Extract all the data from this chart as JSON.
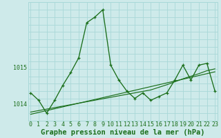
{
  "xlabel": "Graphe pression niveau de la mer (hPa)",
  "hours": [
    0,
    1,
    2,
    3,
    4,
    5,
    6,
    7,
    8,
    9,
    10,
    11,
    12,
    13,
    14,
    15,
    16,
    17,
    18,
    19,
    20,
    21,
    22,
    23
  ],
  "series1": [
    1014.3,
    1014.1,
    1013.75,
    1014.1,
    1014.5,
    1014.85,
    1015.25,
    1016.2,
    1016.35,
    1016.55,
    1015.05,
    1014.65,
    1014.35,
    1014.15,
    1014.3,
    1014.1,
    1014.2,
    1014.3,
    1014.65,
    1015.05,
    1014.65,
    1015.05,
    1015.1,
    1014.35
  ],
  "series2": [
    1013.78,
    1013.82,
    1013.86,
    1013.9,
    1013.94,
    1013.98,
    1014.02,
    1014.06,
    1014.1,
    1014.14,
    1014.18,
    1014.22,
    1014.26,
    1014.3,
    1014.34,
    1014.38,
    1014.45,
    1014.52,
    1014.6,
    1014.68,
    1014.75,
    1014.82,
    1014.9,
    1014.95
  ],
  "series3": [
    1013.72,
    1013.77,
    1013.82,
    1013.87,
    1013.92,
    1013.97,
    1014.02,
    1014.07,
    1014.12,
    1014.17,
    1014.22,
    1014.27,
    1014.32,
    1014.37,
    1014.42,
    1014.47,
    1014.52,
    1014.57,
    1014.62,
    1014.67,
    1014.72,
    1014.77,
    1014.82,
    1014.87
  ],
  "line_color": "#1a6e1a",
  "bg_color": "#ceeaea",
  "grid_color": "#a8d8d8",
  "ylim_min": 1013.55,
  "ylim_max": 1016.75,
  "yticks": [
    1014,
    1015
  ],
  "tick_fontsize": 6.0,
  "label_fontsize": 7.5
}
